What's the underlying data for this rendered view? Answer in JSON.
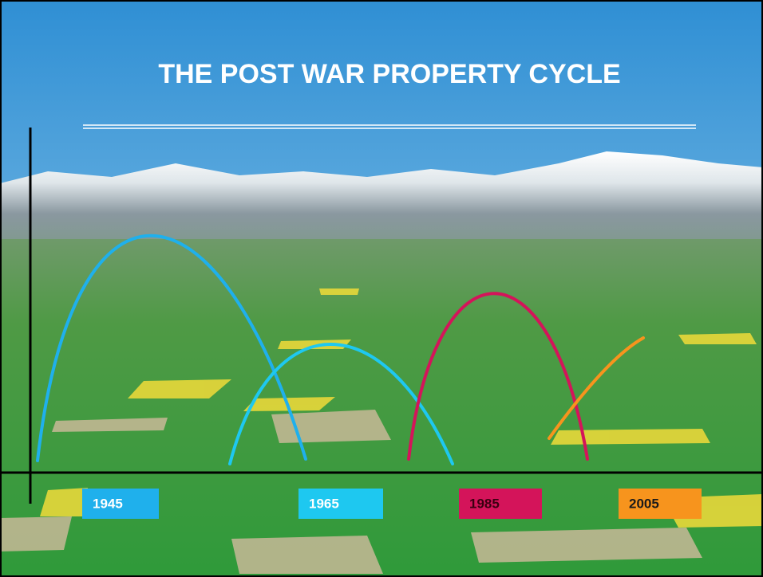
{
  "slide": {
    "title": "THE POST WAR PROPERTY CYCLE",
    "labels": [
      "1945",
      "1965",
      "1985",
      "2005"
    ]
  }
}
